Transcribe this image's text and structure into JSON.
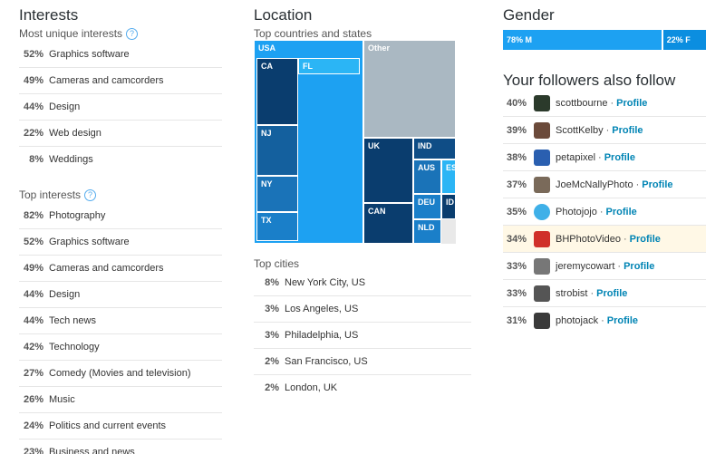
{
  "interests": {
    "title": "Interests",
    "most_unique_label": "Most unique interests",
    "help_glyph": "?",
    "most_unique": [
      {
        "pct": "52%",
        "label": "Graphics software"
      },
      {
        "pct": "49%",
        "label": "Cameras and camcorders"
      },
      {
        "pct": "44%",
        "label": "Design"
      },
      {
        "pct": "22%",
        "label": "Web design"
      },
      {
        "pct": "8%",
        "label": "Weddings"
      }
    ],
    "top_label": "Top interests",
    "top": [
      {
        "pct": "82%",
        "label": "Photography"
      },
      {
        "pct": "52%",
        "label": "Graphics software"
      },
      {
        "pct": "49%",
        "label": "Cameras and camcorders"
      },
      {
        "pct": "44%",
        "label": "Design"
      },
      {
        "pct": "44%",
        "label": "Tech news"
      },
      {
        "pct": "42%",
        "label": "Technology"
      },
      {
        "pct": "27%",
        "label": "Comedy (Movies and television)"
      },
      {
        "pct": "26%",
        "label": "Music"
      },
      {
        "pct": "24%",
        "label": "Politics and current events"
      },
      {
        "pct": "23%",
        "label": "Business and news"
      }
    ]
  },
  "location": {
    "title": "Location",
    "top_countries_label": "Top countries and states",
    "treemap": {
      "usa": "USA",
      "ca": "CA",
      "fl": "FL",
      "nj": "NJ",
      "ny": "NY",
      "tx": "TX",
      "other": "Other",
      "uk": "UK",
      "ind": "IND",
      "aus": "AUS",
      "es": "ES",
      "deu": "DEU",
      "can": "CAN",
      "id": "ID",
      "nld": "NLD"
    },
    "top_cities_label": "Top cities",
    "cities": [
      {
        "pct": "8%",
        "label": "New York City, US"
      },
      {
        "pct": "3%",
        "label": "Los Angeles, US"
      },
      {
        "pct": "3%",
        "label": "Philadelphia, US"
      },
      {
        "pct": "2%",
        "label": "San Francisco, US"
      },
      {
        "pct": "2%",
        "label": "London, UK"
      }
    ]
  },
  "gender": {
    "title": "Gender",
    "male": "78% M",
    "female": "22% F",
    "male_share": 0.78,
    "female_share": 0.22
  },
  "followers": {
    "title": "Your followers also follow",
    "separator": "·",
    "profile_label": "Profile",
    "rows": [
      {
        "pct": "40%",
        "name": "scottbourne",
        "avatar": "#2b3a2b"
      },
      {
        "pct": "39%",
        "name": "ScottKelby",
        "avatar": "#6b4a3a"
      },
      {
        "pct": "38%",
        "name": "petapixel",
        "avatar": "#2a5fb0"
      },
      {
        "pct": "37%",
        "name": "JoeMcNallyPhoto",
        "avatar": "#7a6a5a"
      },
      {
        "pct": "35%",
        "name": "Photojojo",
        "avatar": "#3fb0e8"
      },
      {
        "pct": "34%",
        "name": "BHPhotoVideo",
        "avatar": "#d0302a"
      },
      {
        "pct": "33%",
        "name": "jeremycowart",
        "avatar": "#777777"
      },
      {
        "pct": "33%",
        "name": "strobist",
        "avatar": "#555555"
      },
      {
        "pct": "31%",
        "name": "photojack",
        "avatar": "#3a3a3a"
      }
    ]
  }
}
